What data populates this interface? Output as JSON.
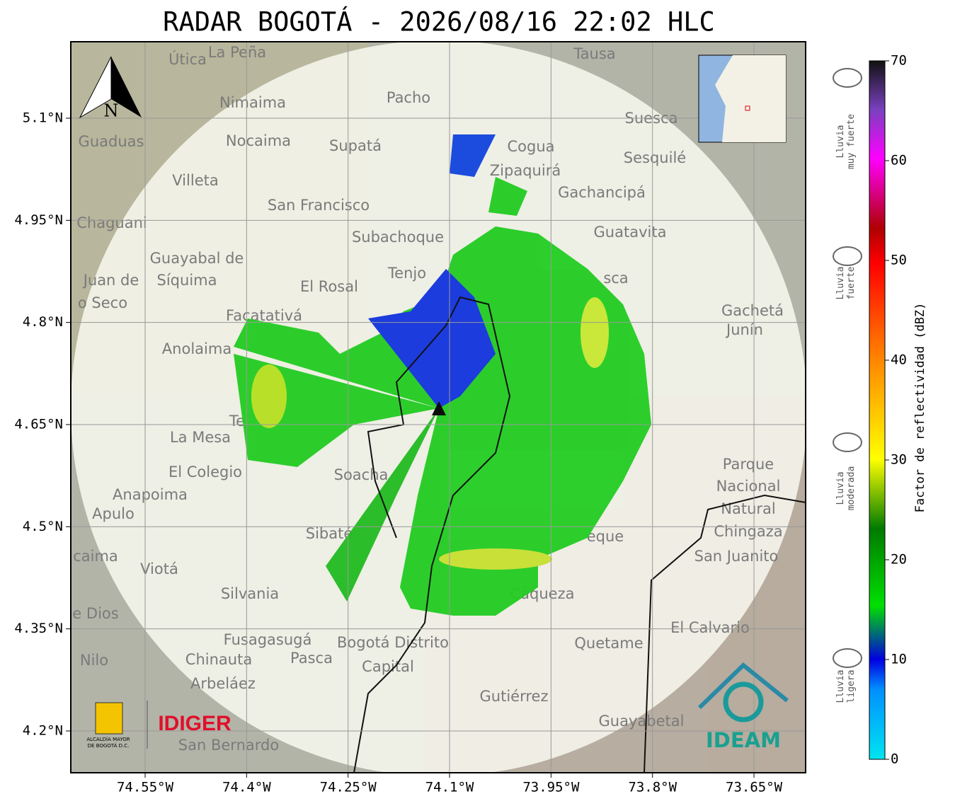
{
  "header": {
    "title": "RADAR BOGOTÁ - 2026/08/16 22:02 HLC"
  },
  "map": {
    "xticks": [
      {
        "value": -74.55,
        "label": "74.55°W"
      },
      {
        "value": -74.4,
        "label": "74.4°W"
      },
      {
        "value": -74.25,
        "label": "74.25°W"
      },
      {
        "value": -74.1,
        "label": "74.1°W"
      },
      {
        "value": -73.95,
        "label": "73.95°W"
      },
      {
        "value": -73.8,
        "label": "73.8°W"
      },
      {
        "value": -73.65,
        "label": "73.65°W"
      }
    ],
    "yticks": [
      {
        "value": 5.1,
        "label": "5.1°N"
      },
      {
        "value": 4.95,
        "label": "4.95°N"
      },
      {
        "value": 4.8,
        "label": "4.8°N"
      },
      {
        "value": 4.65,
        "label": "4.65°N"
      },
      {
        "value": 4.5,
        "label": "4.5°N"
      },
      {
        "value": 4.35,
        "label": "4.35°N"
      },
      {
        "value": 4.2,
        "label": "4.2°N"
      }
    ],
    "north": "N",
    "places": [
      "Útica",
      "La Peña",
      "Tausa",
      "Pacho",
      "Nimaima",
      "Suesca",
      "Guaduas",
      "Nocaima",
      "Supatá",
      "Cogua",
      "Sesquilé",
      "Zipaquirá",
      "Villeta",
      "Gachancipá",
      "San Francisco",
      "Chaguani",
      "Guatavita",
      "Subachoque",
      "Guayabal de",
      "Síquima",
      "Juan de",
      "o Seco",
      "Tenjo",
      "El Rosal",
      "Gachetá",
      "Junín",
      "Facatativá",
      "Anolaima",
      "La Mesa",
      "El Colegio",
      "Soacha",
      "Parque",
      "Nacional",
      "Natural",
      "Chingaza",
      "Anapoima",
      "Apulo",
      "Sibaté",
      "eque",
      "San Juanito",
      "Viotá",
      "caima",
      "Silvania",
      "Cáqueza",
      "El Calvario",
      "e Dios",
      "Fusagasugá",
      "Bogotá Distrito",
      "Capital",
      "Quetame",
      "Nilo",
      "Chinauta",
      "Pasca",
      "Arbeláez",
      "Gutiérrez",
      "Guayabetal",
      "San Bernardo",
      "Te",
      "sca"
    ]
  },
  "logos": {
    "idiger": "IDIGER",
    "alcaldia": [
      "ALCALDÍA MAYOR",
      "DE BOGOTÁ D.C."
    ],
    "ideam": "IDEAM"
  },
  "colorbar": {
    "label": "Factor de reflectividad (dBZ)",
    "lim": [
      0,
      70
    ],
    "ticks": [
      0,
      10,
      20,
      30,
      40,
      50,
      60,
      70
    ],
    "categories": [
      [
        "Lluvia",
        "muy fuerte"
      ],
      [
        "Lluvia",
        "fuerte"
      ],
      [
        "Lluvia",
        "moderada"
      ],
      [
        "Lluvia",
        "ligera"
      ]
    ]
  }
}
